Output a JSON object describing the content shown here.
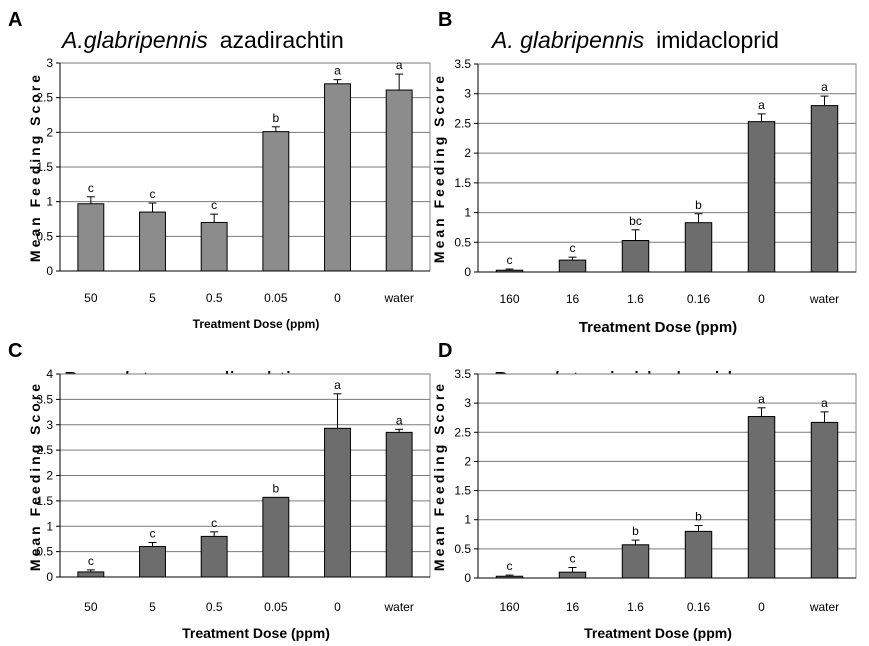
{
  "chart_data": [
    {
      "type": "bar",
      "panel_label": "A",
      "title_species": "A.glabripennis",
      "title_treatment": "azadirachtin",
      "xlabel": "Treatment Dose (ppm)",
      "ylabel": "Mean Feeding Score",
      "categories": [
        "50",
        "5",
        "0.5",
        "0.05",
        "0",
        "water"
      ],
      "values": [
        0.97,
        0.85,
        0.7,
        2.01,
        2.7,
        2.61
      ],
      "errors": [
        0.1,
        0.13,
        0.12,
        0.07,
        0.06,
        0.23
      ],
      "significance": [
        "c",
        "c",
        "c",
        "b",
        "a",
        "a"
      ],
      "ylim": [
        0,
        3
      ],
      "yticks": [
        "0",
        "0.5",
        "1",
        "1.5",
        "2",
        "2.5",
        "3"
      ],
      "grid": true,
      "bar_color": "#8c8c8c"
    },
    {
      "type": "bar",
      "panel_label": "B",
      "title_species": "A. glabripennis",
      "title_treatment": "imidacloprid",
      "xlabel": "Treatment Dose (ppm)",
      "ylabel": "Mean Feeding Score",
      "categories": [
        "160",
        "16",
        "1.6",
        "0.16",
        "0",
        "water"
      ],
      "values": [
        0.03,
        0.2,
        0.53,
        0.83,
        2.53,
        2.8
      ],
      "errors": [
        0.02,
        0.05,
        0.18,
        0.15,
        0.13,
        0.16
      ],
      "significance": [
        "c",
        "c",
        "bc",
        "b",
        "a",
        "a"
      ],
      "ylim": [
        0,
        3.5
      ],
      "yticks": [
        "0",
        "0.5",
        "1",
        "1.5",
        "2",
        "2.5",
        "3",
        "3.5"
      ],
      "grid": true,
      "bar_color": "#6d6d6d"
    },
    {
      "type": "bar",
      "panel_label": "C",
      "title_species": "P. scalator",
      "title_treatment": "azadirachtin",
      "xlabel": "Treatment Dose (ppm)",
      "ylabel": "Mean Feeding Score",
      "categories": [
        "50",
        "5",
        "0.5",
        "0.05",
        "0",
        "water"
      ],
      "values": [
        0.1,
        0.6,
        0.8,
        1.57,
        2.93,
        2.85
      ],
      "errors": [
        0.04,
        0.08,
        0.09,
        0.0,
        0.68,
        0.06
      ],
      "significance": [
        "c",
        "c",
        "c",
        "b",
        "a",
        "a"
      ],
      "ylim": [
        0,
        4
      ],
      "yticks": [
        "0",
        "0.5",
        "1",
        "1.5",
        "2",
        "2.5",
        "3",
        "3.5",
        "4"
      ],
      "grid": true,
      "bar_color": "#6d6d6d"
    },
    {
      "type": "bar",
      "panel_label": "D",
      "title_species": "P. scalator",
      "title_treatment": "imidacloprid",
      "xlabel": "Treatment Dose (ppm)",
      "ylabel": "Mean Feeding Score",
      "categories": [
        "160",
        "16",
        "1.6",
        "0.16",
        "0",
        "water"
      ],
      "values": [
        0.03,
        0.1,
        0.57,
        0.8,
        2.77,
        2.67
      ],
      "errors": [
        0.02,
        0.08,
        0.08,
        0.1,
        0.15,
        0.18
      ],
      "significance": [
        "c",
        "c",
        "b",
        "b",
        "a",
        "a"
      ],
      "ylim": [
        0,
        3.5
      ],
      "yticks": [
        "0",
        "0.5",
        "1",
        "1.5",
        "2",
        "2.5",
        "3",
        "3.5"
      ],
      "grid": true,
      "bar_color": "#6d6d6d"
    }
  ]
}
